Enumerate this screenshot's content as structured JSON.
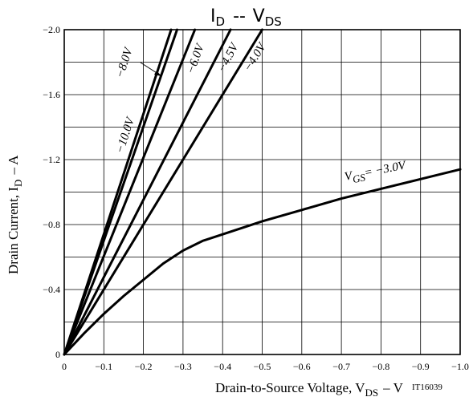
{
  "chart_data": {
    "type": "line",
    "title": {
      "main": "I",
      "sub": "D",
      "dash": "--",
      "main2": "V",
      "sub2": "DS"
    },
    "xlabel": {
      "pre": "Drain-to-Source Voltage, V",
      "sub": "DS",
      "post": "– V"
    },
    "ylabel": {
      "pre": "Drain Current, I",
      "sub": "D",
      "post": "– A"
    },
    "figure_code": "IT16039",
    "xlim": [
      0,
      -1.0
    ],
    "ylim": [
      0,
      -2.0
    ],
    "x_ticks": [
      0,
      -0.1,
      -0.2,
      -0.3,
      -0.4,
      -0.5,
      -0.6,
      -0.7,
      -0.8,
      -0.9,
      -1.0
    ],
    "x_tick_labels": [
      "0",
      "−0.1",
      "−0.2",
      "−0.3",
      "−0.4",
      "−0.5",
      "−0.6",
      "−0.7",
      "−0.8",
      "−0.9",
      "−1.0"
    ],
    "y_ticks": [
      0,
      -0.4,
      -0.8,
      -1.2,
      -1.6,
      -2.0
    ],
    "y_tick_labels": [
      "0",
      "−0.4",
      "−0.8",
      "−1.2",
      "−1.6",
      "−2.0"
    ],
    "minor_y_grid": [
      -0.2,
      -0.6,
      -1.0,
      -1.4,
      -1.8
    ],
    "grid": true,
    "series": [
      {
        "name": "−10.0V",
        "x": [
          0,
          -0.27
        ],
        "y": [
          0,
          -2.0
        ]
      },
      {
        "name": "−8.0V",
        "x": [
          0,
          -0.285
        ],
        "y": [
          0,
          -2.0
        ]
      },
      {
        "name": "−6.0V",
        "x": [
          0,
          -0.33
        ],
        "y": [
          0,
          -2.0
        ]
      },
      {
        "name": "−4.5V",
        "x": [
          0,
          -0.42
        ],
        "y": [
          0,
          -2.0
        ]
      },
      {
        "name": "−4.0V",
        "x": [
          0,
          -0.5
        ],
        "y": [
          0,
          -2.0
        ]
      },
      {
        "name": "VGS= −3.0V",
        "x": [
          0,
          -0.05,
          -0.1,
          -0.15,
          -0.2,
          -0.25,
          -0.3,
          -0.35,
          -0.4,
          -0.5,
          -0.6,
          -0.7,
          -0.8,
          -0.9,
          -1.0
        ],
        "y": [
          0,
          -0.13,
          -0.25,
          -0.36,
          -0.46,
          -0.56,
          -0.64,
          -0.7,
          -0.74,
          -0.82,
          -0.89,
          -0.96,
          -1.02,
          -1.08,
          -1.14
        ]
      }
    ],
    "curve_labels": {
      "l10": "−10.0V",
      "l8": "−8.0V",
      "l6": "−6.0V",
      "l45": "−4.5V",
      "l4": "−4.0V",
      "l3_pre": "V",
      "l3_sub": "GS",
      "l3_post": "= −3.0V"
    }
  }
}
